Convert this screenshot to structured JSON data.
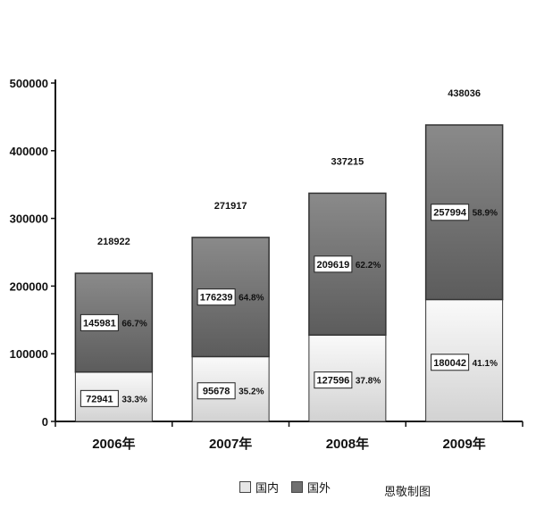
{
  "chart_data": {
    "type": "bar",
    "stacked": true,
    "categories": [
      "2006年",
      "2007年",
      "2008年",
      "2009年"
    ],
    "series": [
      {
        "name": "国内",
        "color": "#e6e6e6",
        "values": [
          72941,
          95678,
          127596,
          180042
        ],
        "percent_labels": [
          "33.3%",
          "35.2%",
          "37.8%",
          "41.1%"
        ]
      },
      {
        "name": "国外",
        "color": "#707070",
        "values": [
          145981,
          176239,
          209619,
          257994
        ],
        "percent_labels": [
          "66.7%",
          "64.8%",
          "62.2%",
          "58.9%"
        ]
      }
    ],
    "totals": [
      218922,
      271917,
      337215,
      438036
    ],
    "ylim": [
      0,
      500000
    ],
    "yticks": [
      0,
      100000,
      200000,
      300000,
      400000,
      500000
    ],
    "grid": false,
    "legend": "bottom"
  },
  "source_label": "恩敬制图"
}
